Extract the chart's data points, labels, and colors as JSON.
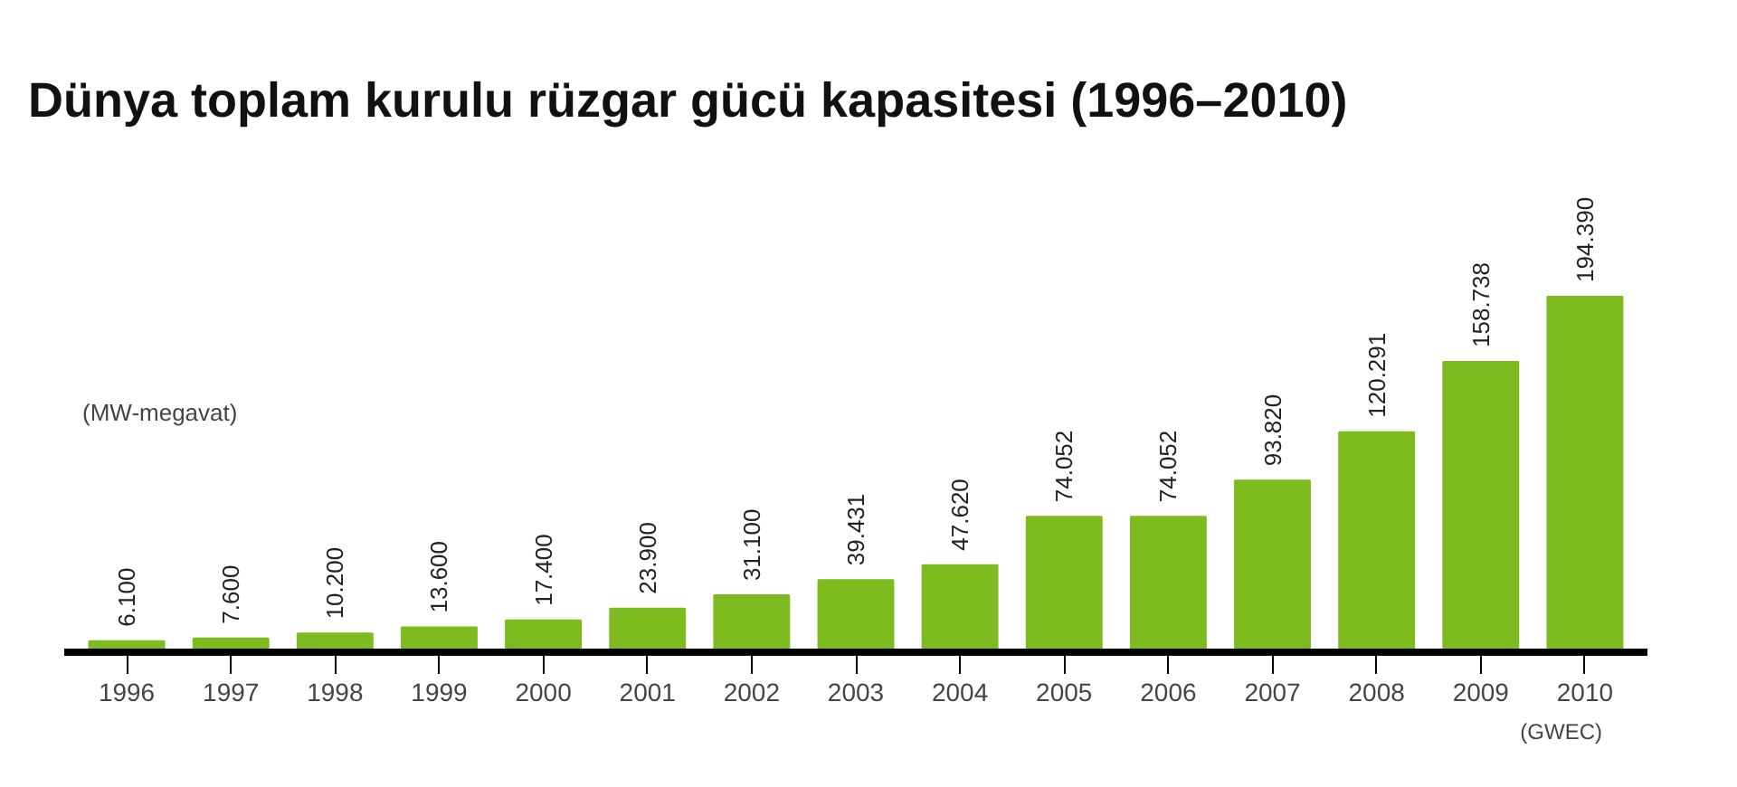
{
  "chart_data": {
    "type": "bar",
    "title": "Dünya toplam kurulu rüzgar gücü kapasitesi (1996–2010)",
    "ylabel": "(MW-megavat)",
    "categories": [
      "1996",
      "1997",
      "1998",
      "1999",
      "2000",
      "2001",
      "2002",
      "2003",
      "2004",
      "2005",
      "2006",
      "2007",
      "2008",
      "2009",
      "2010"
    ],
    "values": [
      6100,
      7600,
      10200,
      13600,
      17400,
      23900,
      31100,
      39431,
      47620,
      74052,
      74052,
      93820,
      120291,
      158738,
      194390
    ],
    "value_labels": [
      "6.100",
      "7.600",
      "10.200",
      "13.600",
      "17.400",
      "23.900",
      "31.100",
      "39.431",
      "47.620",
      "74.052",
      "74.052",
      "93.820",
      "120.291",
      "158.738",
      "194.390"
    ],
    "color": "#7dbb1f",
    "annotations": [
      "(GWEC)"
    ]
  }
}
